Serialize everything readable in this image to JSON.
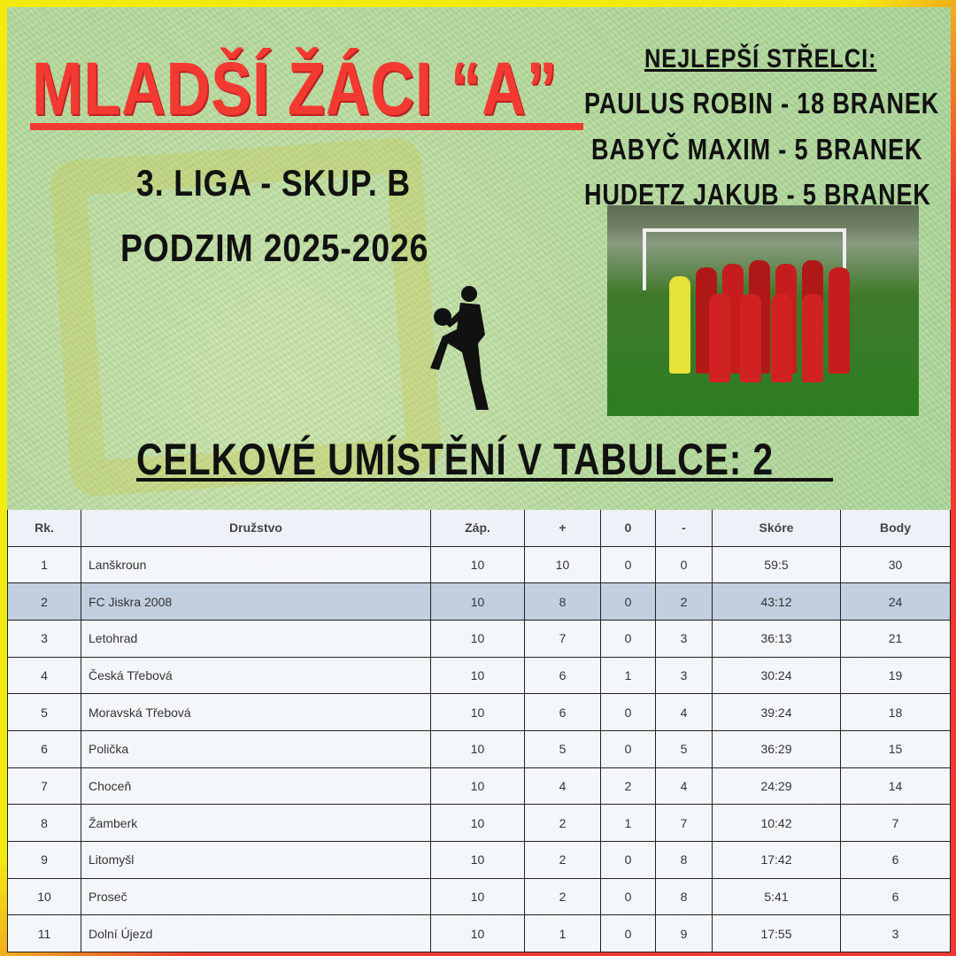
{
  "title": "Mladší žáci “A”",
  "league": "3. liga - skup. B",
  "season": "Podzim 2025-2026",
  "top_scorers": {
    "heading": "Nejlepší střelci:",
    "items": [
      "Paulus Robin - 18 branek",
      "Babyč Maxim - 5 branek",
      "Hudetz Jakub - 5 branek"
    ]
  },
  "placement": "Celkové umístění v tabulce: 2",
  "colors": {
    "title": "#f33a32",
    "highlight_row": "#c2cfdf",
    "border_yellow": "#f3ea10",
    "border_red": "#f03a30"
  },
  "table": {
    "headers": [
      "Rk.",
      "Družstvo",
      "Záp.",
      "+",
      "0",
      "-",
      "Skóre",
      "Body"
    ],
    "highlight_rank": 2,
    "rows": [
      [
        "1",
        "Lanškroun",
        "10",
        "10",
        "0",
        "0",
        "59:5",
        "30"
      ],
      [
        "2",
        "FC Jiskra 2008",
        "10",
        "8",
        "0",
        "2",
        "43:12",
        "24"
      ],
      [
        "3",
        "Letohrad",
        "10",
        "7",
        "0",
        "3",
        "36:13",
        "21"
      ],
      [
        "4",
        "Česká Třebová",
        "10",
        "6",
        "1",
        "3",
        "30:24",
        "19"
      ],
      [
        "5",
        "Moravská Třebová",
        "10",
        "6",
        "0",
        "4",
        "39:24",
        "18"
      ],
      [
        "6",
        "Polička",
        "10",
        "5",
        "0",
        "5",
        "36:29",
        "15"
      ],
      [
        "7",
        "Choceň",
        "10",
        "4",
        "2",
        "4",
        "24:29",
        "14"
      ],
      [
        "8",
        "Žamberk",
        "10",
        "2",
        "1",
        "7",
        "10:42",
        "7"
      ],
      [
        "9",
        "Litomyšl",
        "10",
        "2",
        "0",
        "8",
        "17:42",
        "6"
      ],
      [
        "10",
        "Proseč",
        "10",
        "2",
        "0",
        "8",
        "5:41",
        "6"
      ],
      [
        "11",
        "Dolní Újezd",
        "10",
        "1",
        "0",
        "9",
        "17:55",
        "3"
      ]
    ]
  }
}
